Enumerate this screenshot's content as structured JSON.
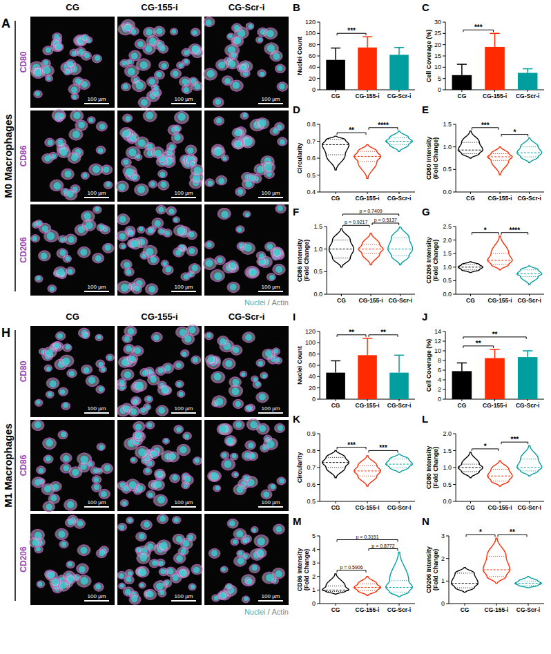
{
  "image_panels": [
    {
      "letter": "A",
      "title": "M0 Macrophages",
      "columns": [
        "CG",
        "CG-155-i",
        "CG-Scr-i"
      ],
      "rows": [
        "CD80",
        "CD86",
        "CD206"
      ],
      "scale_bar": "100 µm",
      "channels": [
        "Nuclei",
        "Actin"
      ],
      "separator": "/"
    },
    {
      "letter": "H",
      "title": "M1 Macrophages",
      "columns": [
        "CG",
        "CG-155-i",
        "CG-Scr-i"
      ],
      "rows": [
        "CD80",
        "CD86",
        "CD206"
      ],
      "scale_bar": "100 µm",
      "channels": [
        "Nuclei",
        "Actin"
      ],
      "separator": "/"
    }
  ],
  "chart_data": [
    {
      "panel": "B",
      "type": "bar",
      "y_label": "Nuclei Count",
      "categories": [
        "CG",
        "CG-155-i",
        "CG-Scr-i"
      ],
      "values": [
        53,
        75,
        62
      ],
      "errors": [
        21,
        19,
        13
      ],
      "colors": [
        "#000000",
        "#ff2a00",
        "#009e9e"
      ],
      "ylim": [
        0,
        120
      ],
      "yticks": [
        0,
        20,
        40,
        60,
        80,
        100,
        120
      ],
      "annotations": [
        {
          "between": [
            0,
            1
          ],
          "label": "***"
        }
      ]
    },
    {
      "panel": "C",
      "type": "bar",
      "y_label": "Cell Coverage (%)",
      "categories": [
        "CG",
        "CG-155-i",
        "CG-Scr-i"
      ],
      "values": [
        6.5,
        19,
        7.5
      ],
      "errors": [
        4.8,
        6,
        1.8
      ],
      "colors": [
        "#000000",
        "#ff2a00",
        "#009e9e"
      ],
      "ylim": [
        0,
        30
      ],
      "yticks": [
        0,
        5,
        10,
        15,
        20,
        25,
        30
      ],
      "annotations": [
        {
          "between": [
            0,
            1
          ],
          "label": "***"
        }
      ]
    },
    {
      "panel": "D",
      "type": "violin",
      "y_label": "Circularity",
      "categories": [
        "CG",
        "CG-155-i",
        "CG-Scr-i"
      ],
      "min": [
        0.53,
        0.48,
        0.64
      ],
      "q1": [
        0.62,
        0.58,
        0.68
      ],
      "median": [
        0.68,
        0.61,
        0.7
      ],
      "q3": [
        0.71,
        0.64,
        0.72
      ],
      "max": [
        0.73,
        0.68,
        0.76
      ],
      "colors": [
        "#000000",
        "#ff2a00",
        "#009e9e"
      ],
      "ylim": [
        0.4,
        0.8
      ],
      "yticks": [
        0.4,
        0.5,
        0.6,
        0.7,
        0.8
      ],
      "annotations": [
        {
          "between": [
            0,
            1
          ],
          "label": "**"
        },
        {
          "between": [
            1,
            2
          ],
          "label": "****"
        }
      ]
    },
    {
      "panel": "E",
      "type": "violin",
      "y_label": "CD80 Intensity (Fold Change)",
      "categories": [
        "CG",
        "CG-155-i",
        "CG-Scr-i"
      ],
      "min": [
        0.75,
        0.38,
        0.65
      ],
      "q1": [
        0.85,
        0.7,
        0.78
      ],
      "median": [
        0.93,
        0.78,
        0.87
      ],
      "q3": [
        1.1,
        0.85,
        1.0
      ],
      "max": [
        1.35,
        1.0,
        1.2
      ],
      "colors": [
        "#000000",
        "#ff2a00",
        "#009e9e"
      ],
      "ylim": [
        0,
        1.5
      ],
      "yticks": [
        {
          "value": 0,
          "label": "0.0"
        },
        0.5,
        {
          "value": 1,
          "label": "1.0"
        },
        1.5
      ],
      "annotations": [
        {
          "between": [
            0,
            1
          ],
          "label": "***"
        },
        {
          "between": [
            1,
            2
          ],
          "label": "*"
        }
      ]
    },
    {
      "panel": "F",
      "type": "violin",
      "y_label": "CD86 Intensity (Fold Change)",
      "categories": [
        "CG",
        "CG-155-i",
        "CG-Scr-i"
      ],
      "min": [
        0.6,
        0.65,
        0.65
      ],
      "q1": [
        0.8,
        0.9,
        0.85
      ],
      "median": [
        1.0,
        1.0,
        1.0
      ],
      "q3": [
        1.2,
        1.1,
        1.25
      ],
      "max": [
        1.45,
        1.35,
        1.5
      ],
      "colors": [
        "#000000",
        "#ff2a00",
        "#009e9e"
      ],
      "ylim": [
        0,
        1.5
      ],
      "yticks": [
        {
          "value": 0,
          "label": "0.0"
        },
        0.5,
        {
          "value": 1,
          "label": "1.0"
        },
        1.5
      ],
      "annotations": [
        {
          "between": [
            0,
            1
          ],
          "label": "p = 0.9217"
        },
        {
          "between": [
            1,
            2
          ],
          "label": "p = 0.5137"
        },
        {
          "between": [
            0,
            2
          ],
          "label": "p = 0.7409"
        }
      ]
    },
    {
      "panel": "G",
      "type": "violin",
      "y_label": "CD206 Intensity (Fold Change)",
      "categories": [
        "CG",
        "CG-155-i",
        "CG-Scr-i"
      ],
      "min": [
        0.8,
        0.9,
        0.35
      ],
      "q1": [
        0.9,
        1.1,
        0.65
      ],
      "median": [
        1.0,
        1.25,
        0.75
      ],
      "q3": [
        1.1,
        1.5,
        0.9
      ],
      "max": [
        1.2,
        2.15,
        1.05
      ],
      "colors": [
        "#000000",
        "#ff2a00",
        "#009e9e"
      ],
      "ylim": [
        0,
        2.5
      ],
      "yticks": [
        {
          "value": 0,
          "label": "0.0"
        },
        0.5,
        {
          "value": 1,
          "label": "1.0"
        },
        1.5,
        {
          "value": 2,
          "label": "2.0"
        },
        2.5
      ],
      "annotations": [
        {
          "between": [
            0,
            1
          ],
          "label": "*"
        },
        {
          "between": [
            1,
            2
          ],
          "label": "****"
        }
      ]
    },
    {
      "panel": "I",
      "type": "bar",
      "y_label": "Nuclei Count",
      "categories": [
        "CG",
        "CG-155-i",
        "CG-Scr-i"
      ],
      "values": [
        47,
        78,
        47
      ],
      "errors": [
        21,
        30,
        31
      ],
      "colors": [
        "#000000",
        "#ff2a00",
        "#009e9e"
      ],
      "ylim": [
        0,
        120
      ],
      "yticks": [
        0,
        20,
        40,
        60,
        80,
        100,
        120
      ],
      "annotations": [
        {
          "between": [
            0,
            1
          ],
          "label": "**"
        },
        {
          "between": [
            1,
            2
          ],
          "label": "**"
        }
      ]
    },
    {
      "panel": "J",
      "type": "bar",
      "y_label": "Cell Coverage (%)",
      "categories": [
        "CG",
        "CG-155-i",
        "CG-Scr-i"
      ],
      "values": [
        5.8,
        8.5,
        8.7
      ],
      "errors": [
        1.7,
        1.8,
        1.3
      ],
      "colors": [
        "#000000",
        "#ff2a00",
        "#009e9e"
      ],
      "ylim": [
        0,
        14
      ],
      "yticks": [
        0,
        2,
        4,
        6,
        8,
        10,
        12,
        14
      ],
      "annotations": [
        {
          "between": [
            0,
            1
          ],
          "label": "**"
        },
        {
          "between": [
            0,
            2
          ],
          "label": "**"
        }
      ]
    },
    {
      "panel": "K",
      "type": "violin",
      "y_label": "Circularity",
      "categories": [
        "CG",
        "CG-155-i",
        "CG-Scr-i"
      ],
      "min": [
        0.64,
        0.59,
        0.67
      ],
      "q1": [
        0.7,
        0.65,
        0.7
      ],
      "median": [
        0.73,
        0.68,
        0.72
      ],
      "q3": [
        0.76,
        0.71,
        0.75
      ],
      "max": [
        0.8,
        0.77,
        0.78
      ],
      "colors": [
        "#000000",
        "#ff2a00",
        "#009e9e"
      ],
      "ylim": [
        0.5,
        0.9
      ],
      "yticks": [
        0.5,
        0.6,
        0.7,
        0.8,
        0.9
      ],
      "annotations": [
        {
          "between": [
            0,
            1
          ],
          "label": "***"
        },
        {
          "between": [
            1,
            2
          ],
          "label": "***"
        }
      ]
    },
    {
      "panel": "L",
      "type": "violin",
      "y_label": "CD80 Intensity (Fold Change)",
      "categories": [
        "CG",
        "CG-155-i",
        "CG-Scr-i"
      ],
      "min": [
        0.7,
        0.45,
        0.75
      ],
      "q1": [
        0.88,
        0.6,
        0.9
      ],
      "median": [
        1.0,
        0.75,
        1.0
      ],
      "q3": [
        1.1,
        0.95,
        1.25
      ],
      "max": [
        1.45,
        1.2,
        1.65
      ],
      "colors": [
        "#000000",
        "#ff2a00",
        "#009e9e"
      ],
      "ylim": [
        0,
        2
      ],
      "yticks": [
        {
          "value": 0,
          "label": "0.0"
        },
        0.5,
        {
          "value": 1,
          "label": "1.0"
        },
        1.5,
        {
          "value": 2,
          "label": "2.0"
        }
      ],
      "annotations": [
        {
          "between": [
            0,
            1
          ],
          "label": "*"
        },
        {
          "between": [
            1,
            2
          ],
          "label": "***"
        }
      ]
    },
    {
      "panel": "M",
      "type": "violin",
      "y_label": "CD86 Intensity (Fold Change)",
      "categories": [
        "CG",
        "CG-155-i",
        "CG-Scr-i"
      ],
      "min": [
        0.7,
        0.6,
        0.5
      ],
      "q1": [
        0.9,
        0.95,
        0.85
      ],
      "median": [
        1.0,
        1.2,
        1.2
      ],
      "q3": [
        1.3,
        1.45,
        1.7
      ],
      "max": [
        2.2,
        2.0,
        3.8
      ],
      "colors": [
        "#000000",
        "#ff2a00",
        "#009e9e"
      ],
      "ylim": [
        0,
        5
      ],
      "yticks": [
        0,
        1,
        2,
        3,
        4,
        5
      ],
      "annotations": [
        {
          "between": [
            0,
            1
          ],
          "label": "p = 0.5906"
        },
        {
          "between": [
            1,
            2
          ],
          "label": "p = 0.8772"
        },
        {
          "between": [
            0,
            2
          ],
          "label": "p = 0.3151"
        }
      ]
    },
    {
      "panel": "N",
      "type": "violin",
      "y_label": "CD206 Intensity (Fold Change)",
      "categories": [
        "CG",
        "CG-155-i",
        "CG-Scr-i"
      ],
      "min": [
        0.5,
        0.9,
        0.7
      ],
      "q1": [
        0.7,
        1.2,
        0.8
      ],
      "median": [
        0.9,
        1.5,
        0.9
      ],
      "q3": [
        1.35,
        2.1,
        1.0
      ],
      "max": [
        1.6,
        2.9,
        1.2
      ],
      "colors": [
        "#000000",
        "#ff2a00",
        "#009e9e"
      ],
      "ylim": [
        0,
        3
      ],
      "yticks": [
        0,
        1,
        2,
        3
      ],
      "annotations": [
        {
          "between": [
            0,
            1
          ],
          "label": "*"
        },
        {
          "between": [
            1,
            2
          ],
          "label": "**"
        }
      ]
    }
  ]
}
